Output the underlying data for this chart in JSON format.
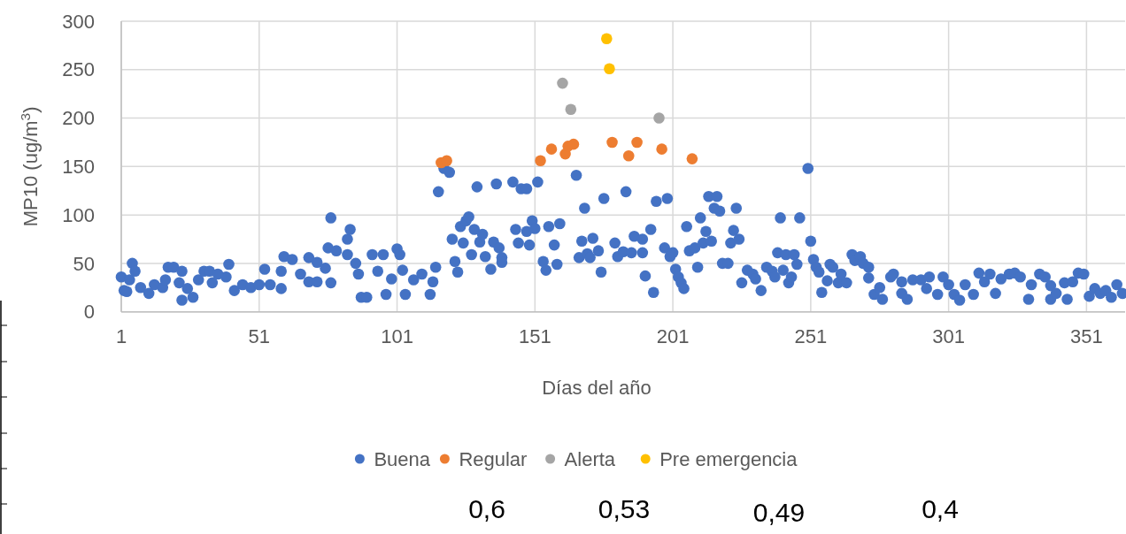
{
  "chart_data": {
    "type": "scatter",
    "xlabel": "Días del año",
    "ylabel": "MP10 (ug/m$^{3}$)",
    "xlim": [
      1,
      365
    ],
    "ylim": [
      0,
      300
    ],
    "xticks": [
      1,
      51,
      101,
      151,
      201,
      251,
      301,
      351
    ],
    "yticks": [
      0,
      50,
      100,
      150,
      200,
      250,
      300
    ],
    "grid": true,
    "legend": "bottom",
    "marker": "circle",
    "series": [
      {
        "name": "Buena",
        "color": "#4472c4",
        "x": [
          1,
          2,
          3,
          5,
          6,
          4,
          8,
          11,
          13,
          16,
          17,
          18,
          20,
          23,
          22,
          23,
          25,
          27,
          29,
          31,
          33,
          34,
          36,
          39,
          40,
          42,
          45,
          48,
          51,
          53,
          55,
          59,
          59,
          60,
          63,
          66,
          69,
          69,
          72,
          72,
          75,
          77,
          77,
          76,
          79,
          83,
          84,
          83,
          86,
          87,
          88,
          90,
          92,
          96,
          97,
          94,
          99,
          101,
          102,
          103,
          104,
          107,
          110,
          114,
          113,
          115,
          116,
          118,
          120,
          121,
          122,
          123,
          124,
          126,
          127,
          125,
          128,
          129,
          130,
          131,
          132,
          133,
          135,
          136,
          137,
          138,
          139,
          139,
          143,
          144,
          145,
          146,
          148,
          149,
          148,
          150,
          151,
          152,
          154,
          155,
          156,
          158,
          159,
          160,
          166,
          169,
          168,
          167,
          170,
          171,
          172,
          174,
          175,
          176,
          180,
          181,
          184,
          183,
          186,
          187,
          190,
          190,
          191,
          193,
          194,
          195,
          199,
          198,
          200,
          201,
          202,
          203,
          204,
          205,
          206,
          207,
          210,
          211,
          209,
          212,
          213,
          215,
          214,
          217,
          216,
          218,
          219,
          221,
          222,
          223,
          224,
          225,
          226,
          228,
          230,
          231,
          233,
          235,
          237,
          238,
          240,
          239,
          242,
          241,
          243,
          244,
          245,
          246,
          247,
          250,
          251,
          252,
          253,
          254,
          255,
          257,
          258,
          259,
          261,
          262,
          264,
          266,
          267,
          269,
          270,
          272,
          272,
          274,
          277,
          276,
          280,
          281,
          284,
          284,
          286,
          288,
          291,
          293,
          294,
          297,
          299,
          301,
          303,
          305,
          307,
          310,
          312,
          314,
          316,
          318,
          320,
          323,
          325,
          327,
          330,
          331,
          334,
          336,
          338,
          338,
          340,
          343,
          344,
          346,
          348,
          350,
          352,
          354,
          356,
          358,
          360,
          362,
          364
        ],
        "values": [
          36,
          22,
          21,
          50,
          42,
          33,
          25,
          19,
          28,
          25,
          33,
          46,
          46,
          42,
          30,
          12,
          24,
          15,
          33,
          42,
          42,
          30,
          39,
          36,
          49,
          22,
          28,
          25,
          28,
          44,
          28,
          24,
          42,
          57,
          54,
          39,
          56,
          31,
          51,
          31,
          45,
          30,
          97,
          66,
          63,
          75,
          85,
          59,
          50,
          39,
          15,
          15,
          59,
          59,
          18,
          42,
          34,
          65,
          59,
          43,
          18,
          33,
          39,
          31,
          18,
          46,
          124,
          148,
          144,
          75,
          52,
          41,
          88,
          94,
          98,
          71,
          59,
          85,
          129,
          72,
          80,
          57,
          44,
          72,
          132,
          66,
          56,
          51,
          134,
          85,
          71,
          127,
          127,
          69,
          83,
          94,
          86,
          134,
          52,
          43,
          88,
          69,
          49,
          91,
          141,
          107,
          73,
          56,
          60,
          56,
          76,
          63,
          41,
          117,
          71,
          57,
          124,
          62,
          61,
          78,
          75,
          61,
          37,
          85,
          20,
          114,
          117,
          66,
          57,
          61,
          44,
          36,
          30,
          24,
          88,
          63,
          46,
          97,
          66,
          71,
          83,
          73,
          119,
          119,
          107,
          104,
          50,
          50,
          71,
          84,
          107,
          75,
          30,
          43,
          39,
          34,
          22,
          46,
          42,
          36,
          97,
          61,
          59,
          43,
          30,
          36,
          59,
          49,
          97,
          148,
          73,
          54,
          46,
          41,
          20,
          32,
          49,
          46,
          30,
          39,
          30,
          59,
          53,
          57,
          50,
          46,
          35,
          18,
          13,
          25,
          36,
          39,
          31,
          19,
          13,
          33,
          33,
          24,
          36,
          18,
          36,
          28,
          18,
          12,
          28,
          18,
          40,
          31,
          39,
          19,
          34,
          39,
          40,
          36,
          13,
          28,
          39,
          36,
          27,
          13,
          19,
          30,
          13,
          31,
          40,
          39,
          16,
          24,
          19,
          22,
          15,
          28,
          19
        ]
      },
      {
        "name": "Regular",
        "color": "#ed7d31",
        "x": [
          117,
          119,
          153,
          157,
          162,
          163,
          165,
          179,
          185,
          188,
          197,
          208
        ],
        "values": [
          154,
          156,
          156,
          168,
          163,
          171,
          173,
          175,
          161,
          175,
          168,
          158
        ]
      },
      {
        "name": "Alerta",
        "color": "#a5a5a5",
        "x": [
          161,
          164,
          196
        ],
        "values": [
          236,
          209,
          200
        ]
      },
      {
        "name": "Pre emergencia",
        "color": "#ffc000",
        "x": [
          177,
          178
        ],
        "values": [
          282,
          251
        ]
      }
    ],
    "annotations": [
      "0,6",
      "0,53",
      "0,49",
      "0,4"
    ]
  }
}
